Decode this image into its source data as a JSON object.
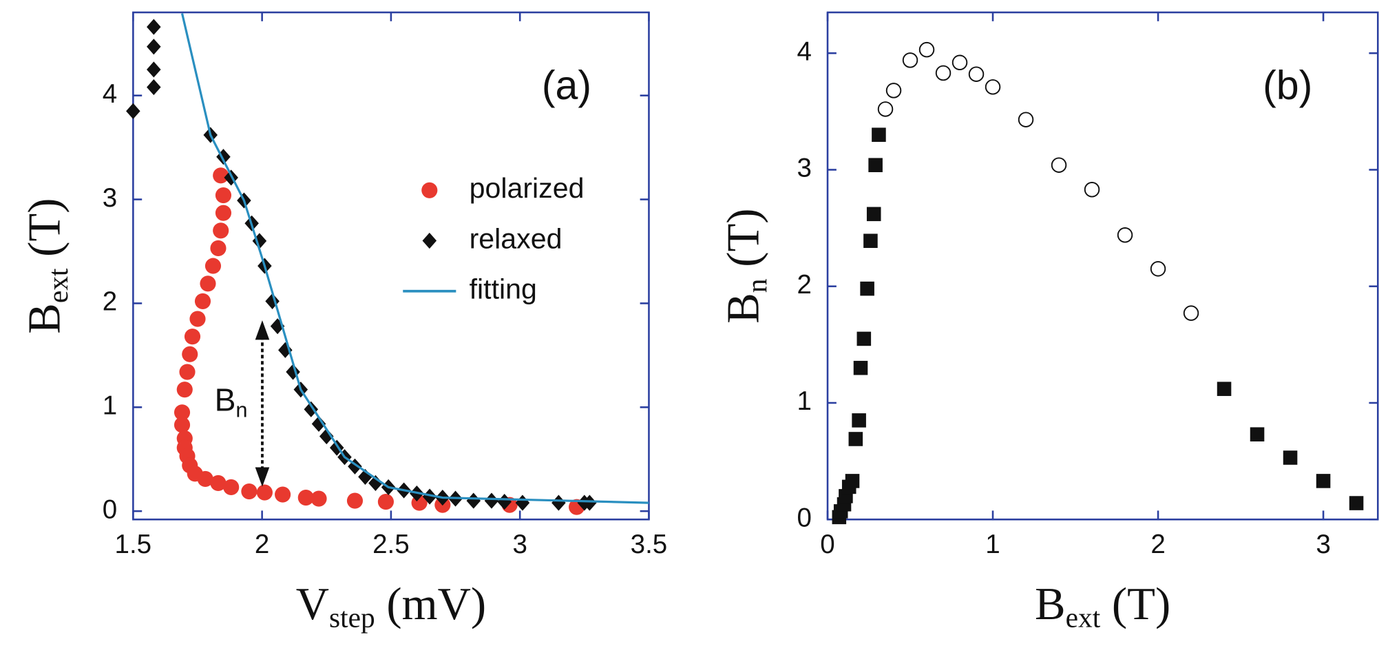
{
  "chart_data": [
    {
      "type": "scatter",
      "annotation": "(a)",
      "arrow_label": {
        "text": "B",
        "sub": "n"
      },
      "xlabel": {
        "text": "V",
        "sub": "step",
        "unit": "(mV)"
      },
      "ylabel": {
        "text": "B",
        "sub": "ext",
        "unit": "(T)"
      },
      "xlim": [
        1.5,
        3.5
      ],
      "ylim": [
        -0.08,
        4.8
      ],
      "xticks": [
        1.5,
        2,
        2.5,
        3,
        3.5
      ],
      "yticks": [
        0,
        1,
        2,
        3,
        4
      ],
      "series": [
        {
          "name": "polarized",
          "color": "#e8392f",
          "marker": "circle",
          "x": [
            1.84,
            1.85,
            1.85,
            1.84,
            1.83,
            1.81,
            1.79,
            1.77,
            1.75,
            1.73,
            1.72,
            1.71,
            1.7,
            1.69,
            1.69,
            1.7,
            1.7,
            1.71,
            1.72,
            1.74,
            1.78,
            1.83,
            1.88,
            1.95,
            2.01,
            2.08,
            2.17,
            2.22,
            2.36,
            2.48,
            2.61,
            2.7,
            2.96,
            3.22
          ],
          "values": [
            3.23,
            3.04,
            2.87,
            2.7,
            2.53,
            2.36,
            2.19,
            2.02,
            1.85,
            1.68,
            1.51,
            1.34,
            1.17,
            0.95,
            0.83,
            0.7,
            0.61,
            0.53,
            0.44,
            0.36,
            0.31,
            0.27,
            0.23,
            0.19,
            0.18,
            0.16,
            0.13,
            0.12,
            0.1,
            0.09,
            0.08,
            0.06,
            0.06,
            0.04
          ]
        },
        {
          "name": "relaxed",
          "color": "#111111",
          "marker": "diamond",
          "x": [
            1.5,
            1.58,
            1.58,
            1.58,
            1.58,
            1.8,
            1.85,
            1.88,
            1.93,
            1.96,
            1.99,
            2.01,
            2.04,
            2.06,
            2.09,
            2.12,
            2.15,
            2.19,
            2.22,
            2.25,
            2.29,
            2.32,
            2.36,
            2.4,
            2.44,
            2.49,
            2.55,
            2.6,
            2.65,
            2.7,
            2.75,
            2.82,
            2.89,
            2.94,
            3.01,
            3.15,
            3.25,
            3.27
          ],
          "values": [
            3.85,
            4.08,
            4.25,
            4.47,
            4.66,
            3.62,
            3.41,
            3.21,
            2.99,
            2.77,
            2.6,
            2.36,
            2.02,
            1.78,
            1.55,
            1.34,
            1.17,
            0.98,
            0.84,
            0.72,
            0.61,
            0.52,
            0.43,
            0.33,
            0.27,
            0.23,
            0.2,
            0.17,
            0.14,
            0.13,
            0.12,
            0.1,
            0.1,
            0.09,
            0.08,
            0.08,
            0.08,
            0.08
          ]
        },
        {
          "name": "fitting",
          "color": "#2a8fc0",
          "marker": "line",
          "x": [
            1.69,
            1.8,
            1.93,
            2.01,
            2.15,
            2.32,
            2.49,
            2.7,
            3.5
          ],
          "values": [
            4.79,
            3.62,
            2.99,
            2.36,
            1.17,
            0.52,
            0.23,
            0.13,
            0.08
          ]
        }
      ]
    },
    {
      "type": "scatter",
      "annotation": "(b)",
      "xlabel": {
        "text": "B",
        "sub": "ext",
        "unit": "(T)"
      },
      "ylabel": {
        "text": "B",
        "sub": "n",
        "unit": "(T)"
      },
      "xlim": [
        0,
        3.33
      ],
      "ylim": [
        0,
        4.35
      ],
      "xticks": [
        0,
        1,
        2,
        3
      ],
      "yticks": [
        0,
        1,
        2,
        3,
        4
      ],
      "series": [
        {
          "color": "#111111",
          "marker": "square",
          "x": [
            0.07,
            0.08,
            0.1,
            0.11,
            0.13,
            0.15,
            0.17,
            0.19,
            0.2,
            0.22,
            0.24,
            0.26,
            0.28,
            0.29,
            0.31,
            2.4,
            2.6,
            2.8,
            3.0,
            3.2
          ],
          "values": [
            0.02,
            0.07,
            0.13,
            0.2,
            0.28,
            0.33,
            0.69,
            0.85,
            1.3,
            1.55,
            1.98,
            2.39,
            2.62,
            3.04,
            3.3,
            1.12,
            0.73,
            0.53,
            0.33,
            0.14
          ]
        },
        {
          "color": "#111111",
          "marker": "open-circle",
          "x": [
            0.35,
            0.4,
            0.5,
            0.6,
            0.7,
            0.8,
            0.9,
            1.0,
            1.2,
            1.4,
            1.6,
            1.8,
            2.0,
            2.2
          ],
          "values": [
            3.52,
            3.68,
            3.94,
            4.03,
            3.83,
            3.92,
            3.82,
            3.71,
            3.43,
            3.04,
            2.83,
            2.44,
            2.15,
            1.77
          ]
        }
      ]
    }
  ]
}
